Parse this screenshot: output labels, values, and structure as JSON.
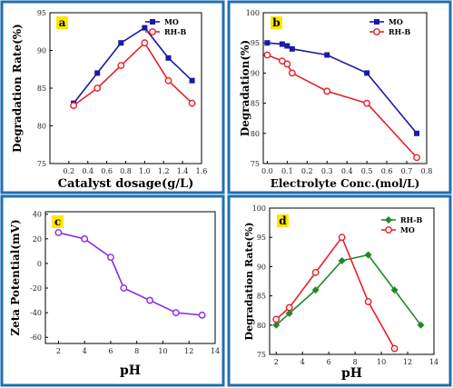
{
  "colors": {
    "border": "#1f6fb5",
    "badge": "#ffe600"
  },
  "chart_data": [
    {
      "panel": "a",
      "type": "line",
      "xlabel": "Catalyst dosage(g/L)",
      "ylabel": "Degradation Rate(%)",
      "xlim": [
        0.0,
        1.6
      ],
      "ylim": [
        75,
        95
      ],
      "xticks": [
        "0.2",
        "0.4",
        "0.6",
        "0.8",
        "1.0",
        "1.2",
        "1.4",
        "1.6"
      ],
      "yticks": [
        "75",
        "80",
        "85",
        "90",
        "95"
      ],
      "legend": "top-right",
      "series": [
        {
          "name": "MO",
          "color": "#1a1aa6",
          "marker": "square",
          "x": [
            0.25,
            0.5,
            0.75,
            1.0,
            1.25,
            1.5
          ],
          "y": [
            83,
            87,
            91,
            93,
            89,
            86
          ]
        },
        {
          "name": "RH-B",
          "color": "#e8202a",
          "marker": "circle",
          "x": [
            0.25,
            0.5,
            0.75,
            1.0,
            1.25,
            1.5
          ],
          "y": [
            82.7,
            85,
            88,
            91,
            86,
            83
          ]
        }
      ]
    },
    {
      "panel": "b",
      "type": "line",
      "xlabel": "Electrolyte Conc.(mol/L)",
      "ylabel": "Degradation(%)",
      "xlim": [
        -0.02,
        0.8
      ],
      "ylim": [
        75,
        100
      ],
      "xticks": [
        "0.0",
        "0.1",
        "0.2",
        "0.3",
        "0.4",
        "0.5",
        "0.6",
        "0.7",
        "0.8"
      ],
      "yticks": [
        "75",
        "80",
        "85",
        "90",
        "95",
        "100"
      ],
      "legend": "top-right",
      "series": [
        {
          "name": "MO",
          "color": "#1a1aa6",
          "marker": "square",
          "x": [
            0,
            0.075,
            0.1,
            0.125,
            0.3,
            0.5,
            0.75
          ],
          "y": [
            95,
            94.8,
            94.5,
            94,
            93,
            90,
            80
          ]
        },
        {
          "name": "RH-B",
          "color": "#e8202a",
          "marker": "circle",
          "x": [
            0,
            0.075,
            0.1,
            0.125,
            0.3,
            0.5,
            0.75
          ],
          "y": [
            93,
            92,
            91.5,
            90,
            87,
            85,
            76
          ]
        }
      ]
    },
    {
      "panel": "c",
      "type": "line",
      "xlabel": "pH",
      "ylabel": "Zeta Potential(mV)",
      "xlim": [
        1,
        14
      ],
      "ylim": [
        -65,
        42
      ],
      "xticks": [
        "2",
        "4",
        "6",
        "8",
        "10",
        "12",
        "14"
      ],
      "yticks": [
        "40",
        "20",
        "0",
        "-20",
        "-40",
        "-60"
      ],
      "series": [
        {
          "color": "#8a2be2",
          "marker": "circle",
          "x": [
            2,
            4,
            6,
            7,
            9,
            11,
            13
          ],
          "y": [
            25,
            20,
            5,
            -20,
            -30,
            -40,
            -42
          ]
        }
      ]
    },
    {
      "panel": "d",
      "type": "line",
      "xlabel": "pH",
      "ylabel": "Degradation Rate(%)",
      "xlim": [
        1.5,
        14
      ],
      "ylim": [
        75,
        100
      ],
      "xticks": [
        "2",
        "4",
        "6",
        "8",
        "10",
        "12",
        "14"
      ],
      "yticks": [
        "75",
        "80",
        "85",
        "90",
        "95",
        "100"
      ],
      "legend": "top-right",
      "series": [
        {
          "name": "RH-B",
          "color": "#1e8a2a",
          "marker": "diamond",
          "x": [
            2,
            3,
            5,
            7,
            9,
            11,
            13
          ],
          "y": [
            80,
            82,
            86,
            91,
            92,
            86,
            80
          ]
        },
        {
          "name": "MO",
          "color": "#e8202a",
          "marker": "circle",
          "x": [
            2,
            3,
            5,
            7,
            9,
            11
          ],
          "y": [
            81,
            83,
            89,
            95,
            84,
            76
          ]
        }
      ]
    }
  ]
}
